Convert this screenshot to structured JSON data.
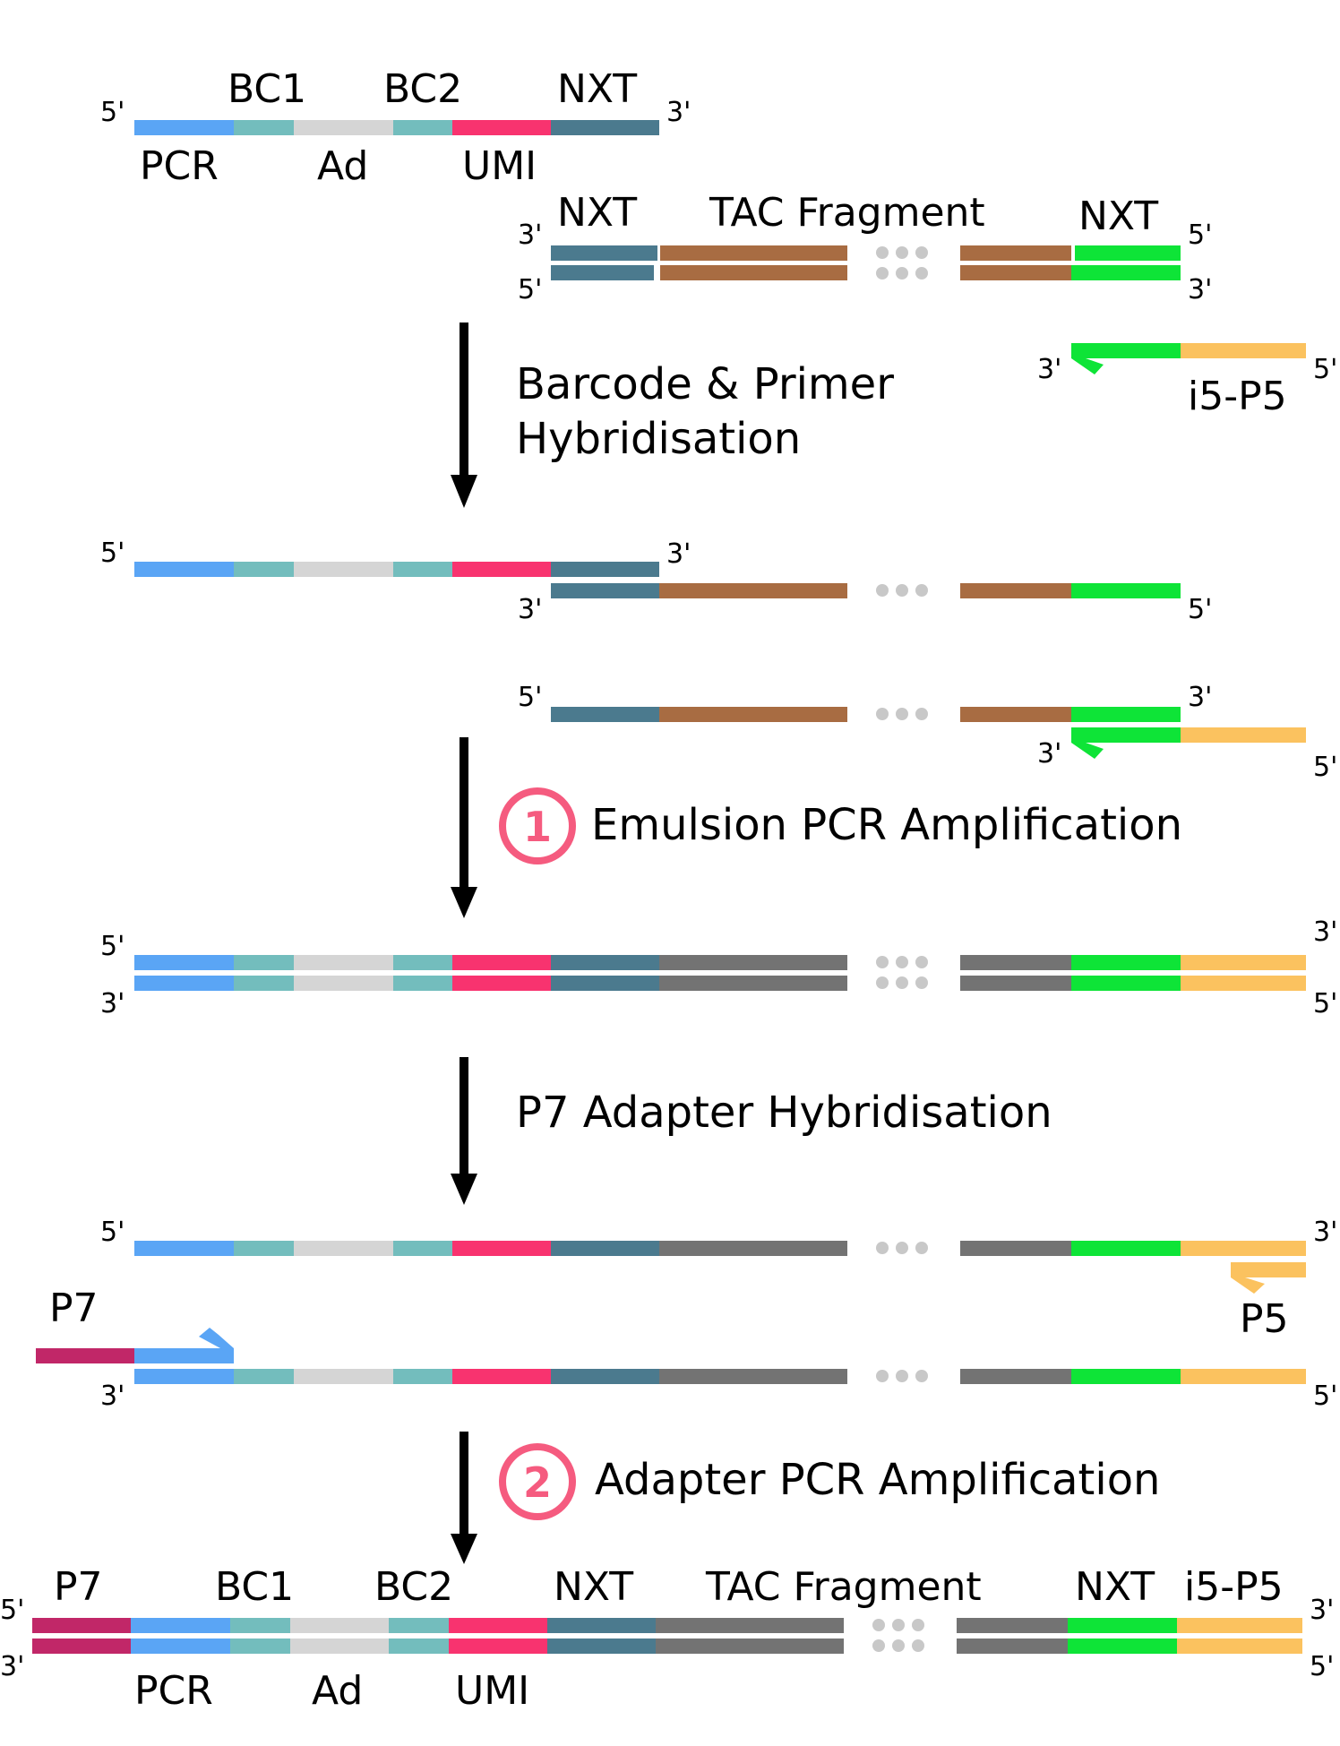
{
  "colors": {
    "pcr": "#5aa5f5",
    "bc": "#73bdbd",
    "ad": "#d5d5d5",
    "umi": "#f8336f",
    "nxt": "#4b7a8e",
    "tac": "#a86c42",
    "nxt_green": "#0ee437",
    "p5": "#fbc25f",
    "gray": "#737373",
    "p7": "#c12768",
    "dots": "#c8c8c8",
    "step_circle": "#f55b7f"
  },
  "end_labels": {
    "five_prime": "5'",
    "three_prime": "3'"
  },
  "top_labels": {
    "bc1": "BC1",
    "bc2": "BC2",
    "nxt": "NXT",
    "pcr": "PCR",
    "ad": "Ad",
    "umi": "UMI",
    "tac_fragment": "TAC Fragment",
    "i5_p5": "i5-P5"
  },
  "steps": [
    {
      "text_line1": "Barcode & Primer",
      "text_line2": "Hybridisation",
      "number": ""
    },
    {
      "text_line1": "Emulsion PCR Amplification",
      "number": "1"
    },
    {
      "text_line1": "P7 Adapter Hybridisation",
      "number": ""
    },
    {
      "text_line1": "Adapter PCR Amplification",
      "number": "2"
    }
  ],
  "primer_labels": {
    "p7": "P7",
    "p5": "P5"
  },
  "final_labels": {
    "p7": "P7",
    "bc1": "BC1",
    "bc2": "BC2",
    "nxt_left": "NXT",
    "tac_fragment": "TAC Fragment",
    "nxt_right": "NXT",
    "i5_p5": "i5-P5",
    "pcr": "PCR",
    "ad": "Ad",
    "umi": "UMI"
  }
}
